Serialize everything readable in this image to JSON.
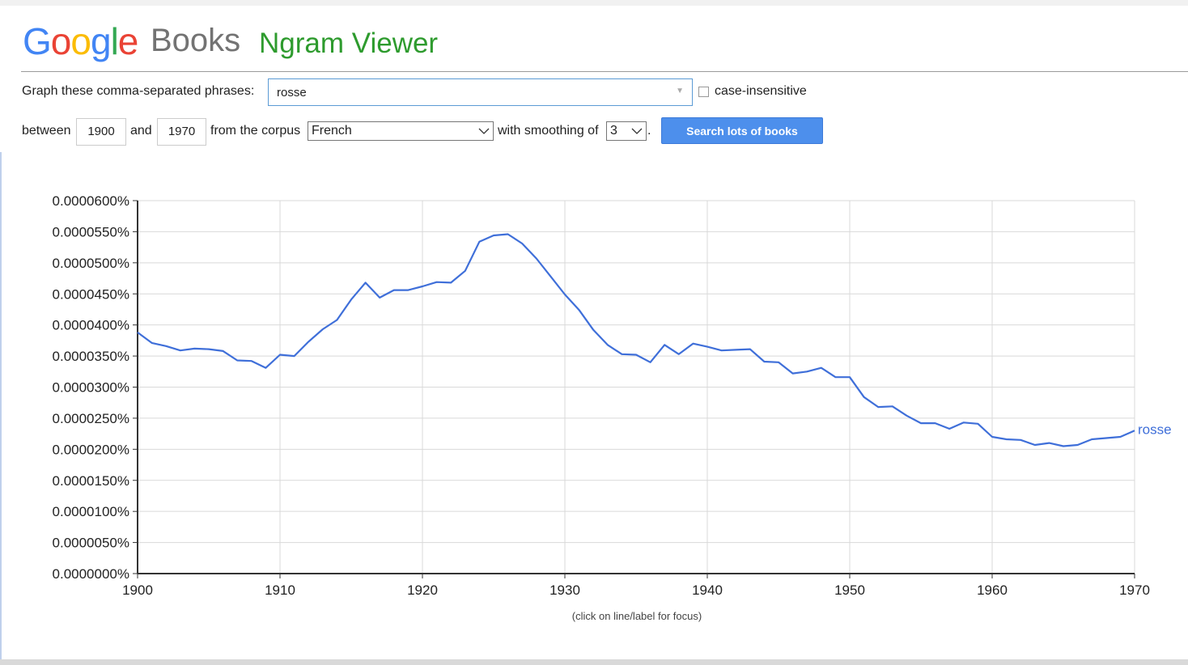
{
  "header": {
    "google_letters": [
      {
        "ch": "G",
        "color": "#4285f4"
      },
      {
        "ch": "o",
        "color": "#ea4335"
      },
      {
        "ch": "o",
        "color": "#fbbc05"
      },
      {
        "ch": "g",
        "color": "#4285f4"
      },
      {
        "ch": "l",
        "color": "#34a853"
      },
      {
        "ch": "e",
        "color": "#ea4335"
      }
    ],
    "books": "Books",
    "ngram": "Ngram Viewer"
  },
  "form": {
    "phrases_label": "Graph these comma-separated phrases:",
    "phrases_value": "rosse",
    "case_insensitive_label": "case-insensitive",
    "case_insensitive_checked": false,
    "between_label": "between",
    "start_year": "1900",
    "and_label": "and",
    "end_year": "1970",
    "corpus_label": "from the corpus",
    "corpus_value": "French",
    "smoothing_label": "with smoothing of",
    "smoothing_value": "3",
    "period": ".",
    "search_button": "Search lots of books"
  },
  "caption": "(click on line/label for focus)",
  "chart_data": {
    "type": "line",
    "xlim": [
      1900,
      1970
    ],
    "ylim": [
      0,
      6e-07
    ],
    "x_ticks": [
      1900,
      1910,
      1920,
      1930,
      1940,
      1950,
      1960,
      1970
    ],
    "y_tick_labels": [
      "0.0000000%",
      "0.0000050%",
      "0.0000100%",
      "0.0000150%",
      "0.0000200%",
      "0.0000250%",
      "0.0000300%",
      "0.0000350%",
      "0.0000400%",
      "0.0000450%",
      "0.0000500%",
      "0.0000550%",
      "0.0000600%"
    ],
    "grid": true,
    "series": [
      {
        "name": "rosse",
        "color": "#3f6fd9",
        "x": [
          1900,
          1901,
          1902,
          1903,
          1904,
          1905,
          1906,
          1907,
          1908,
          1909,
          1910,
          1911,
          1912,
          1913,
          1914,
          1915,
          1916,
          1917,
          1918,
          1919,
          1920,
          1921,
          1922,
          1923,
          1924,
          1925,
          1926,
          1927,
          1928,
          1929,
          1930,
          1931,
          1932,
          1933,
          1934,
          1935,
          1936,
          1937,
          1938,
          1939,
          1940,
          1941,
          1942,
          1943,
          1944,
          1945,
          1946,
          1947,
          1948,
          1949,
          1950,
          1951,
          1952,
          1953,
          1954,
          1955,
          1956,
          1957,
          1958,
          1959,
          1960,
          1961,
          1962,
          1963,
          1964,
          1965,
          1966,
          1967,
          1968,
          1969,
          1970
        ],
        "values": [
          3.88e-07,
          3.71e-07,
          3.66e-07,
          3.59e-07,
          3.62e-07,
          3.61e-07,
          3.58e-07,
          3.43e-07,
          3.42e-07,
          3.31e-07,
          3.52e-07,
          3.5e-07,
          3.73e-07,
          3.93e-07,
          4.08e-07,
          4.41e-07,
          4.68e-07,
          4.44e-07,
          4.56e-07,
          4.56e-07,
          4.62e-07,
          4.69e-07,
          4.68e-07,
          4.87e-07,
          5.34e-07,
          5.44e-07,
          5.46e-07,
          5.31e-07,
          5.07e-07,
          4.78e-07,
          4.49e-07,
          4.24e-07,
          3.92e-07,
          3.68e-07,
          3.53e-07,
          3.52e-07,
          3.4e-07,
          3.68e-07,
          3.53e-07,
          3.7e-07,
          3.65e-07,
          3.59e-07,
          3.6e-07,
          3.61e-07,
          3.41e-07,
          3.4e-07,
          3.22e-07,
          3.25e-07,
          3.31e-07,
          3.16e-07,
          3.16e-07,
          2.84e-07,
          2.68e-07,
          2.69e-07,
          2.54e-07,
          2.42e-07,
          2.42e-07,
          2.33e-07,
          2.43e-07,
          2.41e-07,
          2.2e-07,
          2.16e-07,
          2.15e-07,
          2.07e-07,
          2.1e-07,
          2.05e-07,
          2.07e-07,
          2.16e-07,
          2.18e-07,
          2.2e-07,
          2.3e-07
        ]
      }
    ]
  }
}
